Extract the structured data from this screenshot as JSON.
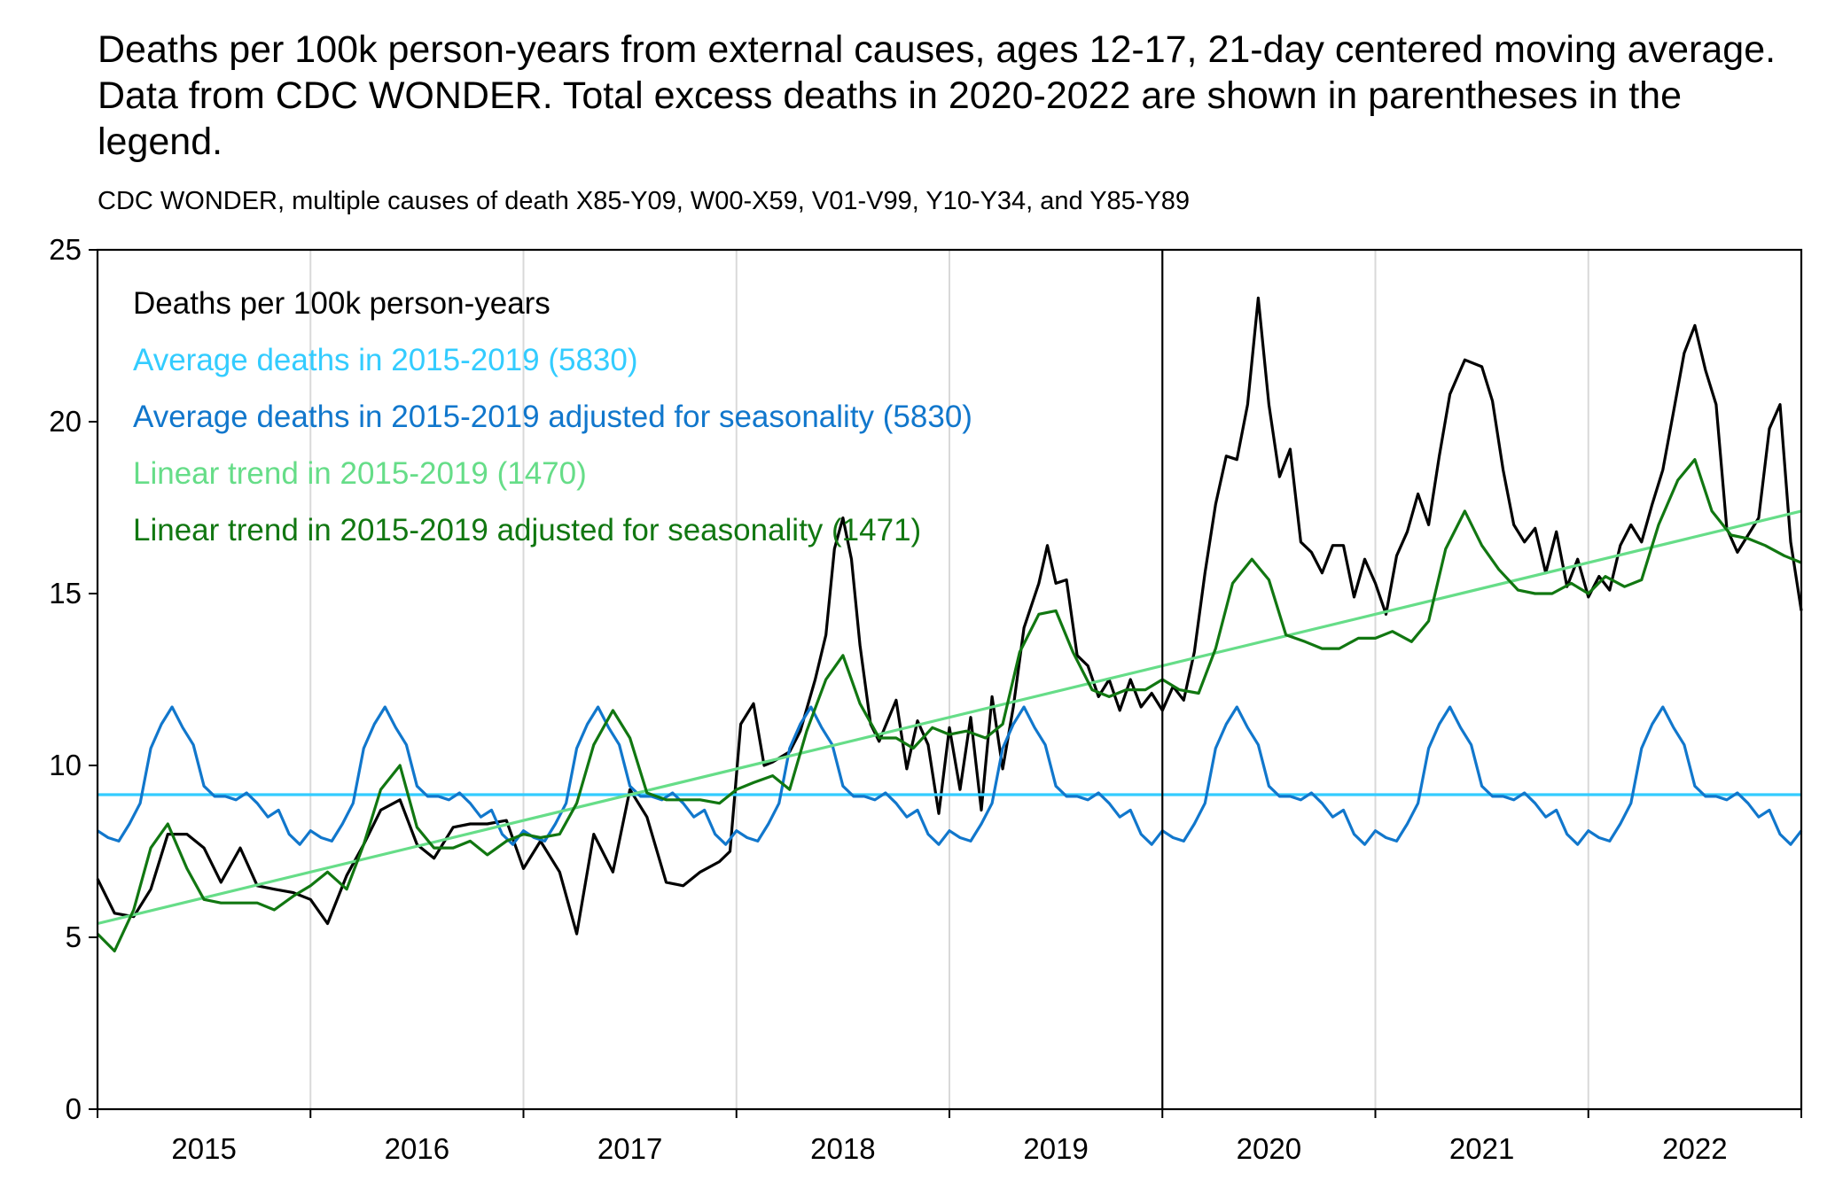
{
  "title": "Deaths per 100k person-years from external causes, ages 12-17, 21-day centered moving average. Data from CDC WONDER. Total excess deaths in 2020-2022 are shown in parentheses in the legend.",
  "subtitle": "CDC WONDER, multiple causes of death X85-Y09, W00-X59, V01-V99, Y10-Y34, and Y85-Y89",
  "chart_data": {
    "type": "line",
    "title": "Deaths per 100k person-years from external causes, ages 12-17, 21-day centered moving average. Data from CDC WONDER. Total excess deaths in 2020-2022 are shown in parentheses in the legend.",
    "subtitle": "CDC WONDER, multiple causes of death X85-Y09, W00-X59, V01-V99, Y10-Y34, and Y85-Y89",
    "xlabel": "",
    "ylabel": "",
    "x_tick_labels": [
      "2015",
      "2016",
      "2017",
      "2018",
      "2019",
      "2020",
      "2021",
      "2022"
    ],
    "xlim": [
      2015.0,
      2023.0
    ],
    "ylim": [
      0,
      25
    ],
    "y_ticks": [
      0,
      5,
      10,
      15,
      20,
      25
    ],
    "grid": "vertical at year boundaries",
    "vertical_marker": 2020.0,
    "legend_position": "top-left",
    "legend_header": "Deaths per 100k person-years",
    "series": [
      {
        "name": "Deaths per 100k person-years",
        "color": "#000000",
        "points": [
          [
            2015.0,
            6.7
          ],
          [
            2015.08,
            5.7
          ],
          [
            2015.17,
            5.6
          ],
          [
            2015.25,
            6.4
          ],
          [
            2015.33,
            8.0
          ],
          [
            2015.42,
            8.0
          ],
          [
            2015.5,
            7.6
          ],
          [
            2015.58,
            6.6
          ],
          [
            2015.67,
            7.6
          ],
          [
            2015.75,
            6.5
          ],
          [
            2015.83,
            6.4
          ],
          [
            2015.92,
            6.3
          ],
          [
            2016.0,
            6.1
          ],
          [
            2016.08,
            5.4
          ],
          [
            2016.17,
            6.8
          ],
          [
            2016.25,
            7.7
          ],
          [
            2016.33,
            8.7
          ],
          [
            2016.42,
            9.0
          ],
          [
            2016.5,
            7.7
          ],
          [
            2016.58,
            7.3
          ],
          [
            2016.67,
            8.2
          ],
          [
            2016.75,
            8.3
          ],
          [
            2016.83,
            8.3
          ],
          [
            2016.92,
            8.4
          ],
          [
            2017.0,
            7.0
          ],
          [
            2017.08,
            7.8
          ],
          [
            2017.17,
            6.9
          ],
          [
            2017.25,
            5.1
          ],
          [
            2017.33,
            8.0
          ],
          [
            2017.42,
            6.9
          ],
          [
            2017.5,
            9.3
          ],
          [
            2017.58,
            8.5
          ],
          [
            2017.67,
            6.6
          ],
          [
            2017.75,
            6.5
          ],
          [
            2017.83,
            6.9
          ],
          [
            2017.92,
            7.2
          ],
          [
            2017.97,
            7.5
          ],
          [
            2018.02,
            11.2
          ],
          [
            2018.08,
            11.8
          ],
          [
            2018.13,
            10.0
          ],
          [
            2018.17,
            10.1
          ],
          [
            2018.25,
            10.4
          ],
          [
            2018.3,
            11.0
          ],
          [
            2018.37,
            12.5
          ],
          [
            2018.42,
            13.8
          ],
          [
            2018.46,
            16.3
          ],
          [
            2018.5,
            17.2
          ],
          [
            2018.54,
            16.0
          ],
          [
            2018.58,
            13.5
          ],
          [
            2018.63,
            11.2
          ],
          [
            2018.67,
            10.7
          ],
          [
            2018.75,
            11.9
          ],
          [
            2018.8,
            9.9
          ],
          [
            2018.85,
            11.3
          ],
          [
            2018.9,
            10.6
          ],
          [
            2018.95,
            8.6
          ],
          [
            2019.0,
            11.1
          ],
          [
            2019.05,
            9.3
          ],
          [
            2019.1,
            11.4
          ],
          [
            2019.15,
            8.7
          ],
          [
            2019.2,
            12.0
          ],
          [
            2019.25,
            9.9
          ],
          [
            2019.3,
            11.7
          ],
          [
            2019.35,
            14.0
          ],
          [
            2019.42,
            15.3
          ],
          [
            2019.46,
            16.4
          ],
          [
            2019.5,
            15.3
          ],
          [
            2019.55,
            15.4
          ],
          [
            2019.6,
            13.2
          ],
          [
            2019.65,
            12.9
          ],
          [
            2019.7,
            12.0
          ],
          [
            2019.75,
            12.5
          ],
          [
            2019.8,
            11.6
          ],
          [
            2019.85,
            12.5
          ],
          [
            2019.9,
            11.7
          ],
          [
            2019.95,
            12.1
          ],
          [
            2020.0,
            11.6
          ],
          [
            2020.05,
            12.3
          ],
          [
            2020.1,
            11.9
          ],
          [
            2020.15,
            13.3
          ],
          [
            2020.2,
            15.6
          ],
          [
            2020.25,
            17.6
          ],
          [
            2020.3,
            19.0
          ],
          [
            2020.35,
            18.9
          ],
          [
            2020.4,
            20.5
          ],
          [
            2020.45,
            23.6
          ],
          [
            2020.5,
            20.5
          ],
          [
            2020.55,
            18.4
          ],
          [
            2020.6,
            19.2
          ],
          [
            2020.65,
            16.5
          ],
          [
            2020.7,
            16.2
          ],
          [
            2020.75,
            15.6
          ],
          [
            2020.8,
            16.4
          ],
          [
            2020.85,
            16.4
          ],
          [
            2020.9,
            14.9
          ],
          [
            2020.95,
            16.0
          ],
          [
            2021.0,
            15.3
          ],
          [
            2021.05,
            14.4
          ],
          [
            2021.1,
            16.1
          ],
          [
            2021.15,
            16.8
          ],
          [
            2021.2,
            17.9
          ],
          [
            2021.25,
            17.0
          ],
          [
            2021.3,
            19.0
          ],
          [
            2021.35,
            20.8
          ],
          [
            2021.42,
            21.8
          ],
          [
            2021.5,
            21.6
          ],
          [
            2021.55,
            20.6
          ],
          [
            2021.6,
            18.6
          ],
          [
            2021.65,
            17.0
          ],
          [
            2021.7,
            16.5
          ],
          [
            2021.75,
            16.9
          ],
          [
            2021.8,
            15.6
          ],
          [
            2021.85,
            16.8
          ],
          [
            2021.9,
            15.2
          ],
          [
            2021.95,
            16.0
          ],
          [
            2022.0,
            14.9
          ],
          [
            2022.05,
            15.5
          ],
          [
            2022.1,
            15.1
          ],
          [
            2022.15,
            16.4
          ],
          [
            2022.2,
            17.0
          ],
          [
            2022.25,
            16.5
          ],
          [
            2022.3,
            17.6
          ],
          [
            2022.35,
            18.6
          ],
          [
            2022.4,
            20.3
          ],
          [
            2022.45,
            22.0
          ],
          [
            2022.5,
            22.8
          ],
          [
            2022.55,
            21.5
          ],
          [
            2022.6,
            20.5
          ],
          [
            2022.65,
            16.9
          ],
          [
            2022.7,
            16.2
          ],
          [
            2022.75,
            16.7
          ],
          [
            2022.8,
            17.2
          ],
          [
            2022.85,
            19.8
          ],
          [
            2022.9,
            20.5
          ],
          [
            2022.95,
            16.5
          ],
          [
            2023.0,
            14.5
          ]
        ]
      },
      {
        "name": "Average deaths in 2015-2019 (5830)",
        "color": "#33ccff",
        "points": [
          [
            2015.0,
            9.15
          ],
          [
            2023.0,
            9.15
          ]
        ]
      },
      {
        "name": "Average deaths in 2015-2019 adjusted for seasonality (5830)",
        "color": "#1177cc",
        "repeat_yearly": true,
        "points": [
          [
            2015.0,
            8.1
          ],
          [
            2015.05,
            7.9
          ],
          [
            2015.1,
            7.8
          ],
          [
            2015.15,
            8.3
          ],
          [
            2015.2,
            8.9
          ],
          [
            2015.25,
            10.5
          ],
          [
            2015.3,
            11.2
          ],
          [
            2015.35,
            11.7
          ],
          [
            2015.4,
            11.1
          ],
          [
            2015.45,
            10.6
          ],
          [
            2015.5,
            9.4
          ],
          [
            2015.55,
            9.1
          ],
          [
            2015.6,
            9.1
          ],
          [
            2015.65,
            9.0
          ],
          [
            2015.7,
            9.2
          ],
          [
            2015.75,
            8.9
          ],
          [
            2015.8,
            8.5
          ],
          [
            2015.85,
            8.7
          ],
          [
            2015.9,
            8.0
          ],
          [
            2015.95,
            7.7
          ],
          [
            2016.0,
            8.1
          ]
        ]
      },
      {
        "name": "Linear trend in 2015-2019 (1470)",
        "color": "#66dd88",
        "points": [
          [
            2015.0,
            5.4
          ],
          [
            2023.0,
            17.4
          ]
        ]
      },
      {
        "name": "Linear trend in 2015-2019 adjusted for seasonality (1471)",
        "color": "#117711",
        "points": [
          [
            2015.0,
            5.1
          ],
          [
            2015.08,
            4.6
          ],
          [
            2015.17,
            5.8
          ],
          [
            2015.25,
            7.6
          ],
          [
            2015.33,
            8.3
          ],
          [
            2015.42,
            7.0
          ],
          [
            2015.5,
            6.1
          ],
          [
            2015.58,
            6.0
          ],
          [
            2015.67,
            6.0
          ],
          [
            2015.75,
            6.0
          ],
          [
            2015.83,
            5.8
          ],
          [
            2015.92,
            6.2
          ],
          [
            2016.0,
            6.5
          ],
          [
            2016.08,
            6.9
          ],
          [
            2016.17,
            6.4
          ],
          [
            2016.25,
            7.7
          ],
          [
            2016.33,
            9.3
          ],
          [
            2016.42,
            10.0
          ],
          [
            2016.5,
            8.2
          ],
          [
            2016.58,
            7.6
          ],
          [
            2016.67,
            7.6
          ],
          [
            2016.75,
            7.8
          ],
          [
            2016.83,
            7.4
          ],
          [
            2016.92,
            7.8
          ],
          [
            2017.0,
            8.0
          ],
          [
            2017.08,
            7.9
          ],
          [
            2017.17,
            8.0
          ],
          [
            2017.25,
            8.9
          ],
          [
            2017.33,
            10.6
          ],
          [
            2017.42,
            11.6
          ],
          [
            2017.5,
            10.8
          ],
          [
            2017.58,
            9.2
          ],
          [
            2017.67,
            9.0
          ],
          [
            2017.75,
            9.0
          ],
          [
            2017.83,
            9.0
          ],
          [
            2017.92,
            8.9
          ],
          [
            2018.0,
            9.3
          ],
          [
            2018.08,
            9.5
          ],
          [
            2018.17,
            9.7
          ],
          [
            2018.25,
            9.3
          ],
          [
            2018.33,
            11.0
          ],
          [
            2018.42,
            12.5
          ],
          [
            2018.5,
            13.2
          ],
          [
            2018.58,
            11.8
          ],
          [
            2018.67,
            10.8
          ],
          [
            2018.75,
            10.8
          ],
          [
            2018.83,
            10.5
          ],
          [
            2018.92,
            11.1
          ],
          [
            2019.0,
            10.9
          ],
          [
            2019.08,
            11.0
          ],
          [
            2019.17,
            10.8
          ],
          [
            2019.25,
            11.2
          ],
          [
            2019.33,
            13.3
          ],
          [
            2019.42,
            14.4
          ],
          [
            2019.5,
            14.5
          ],
          [
            2019.58,
            13.3
          ],
          [
            2019.67,
            12.2
          ],
          [
            2019.75,
            12.0
          ],
          [
            2019.83,
            12.2
          ],
          [
            2019.92,
            12.2
          ],
          [
            2020.0,
            12.5
          ],
          [
            2020.08,
            12.2
          ],
          [
            2020.17,
            12.1
          ],
          [
            2020.25,
            13.4
          ],
          [
            2020.33,
            15.3
          ],
          [
            2020.42,
            16.0
          ],
          [
            2020.5,
            15.4
          ],
          [
            2020.58,
            13.8
          ],
          [
            2020.67,
            13.6
          ],
          [
            2020.75,
            13.4
          ],
          [
            2020.83,
            13.4
          ],
          [
            2020.92,
            13.7
          ],
          [
            2021.0,
            13.7
          ],
          [
            2021.08,
            13.9
          ],
          [
            2021.17,
            13.6
          ],
          [
            2021.25,
            14.2
          ],
          [
            2021.33,
            16.3
          ],
          [
            2021.42,
            17.4
          ],
          [
            2021.5,
            16.4
          ],
          [
            2021.58,
            15.7
          ],
          [
            2021.67,
            15.1
          ],
          [
            2021.75,
            15.0
          ],
          [
            2021.83,
            15.0
          ],
          [
            2021.92,
            15.3
          ],
          [
            2022.0,
            15.0
          ],
          [
            2022.08,
            15.5
          ],
          [
            2022.17,
            15.2
          ],
          [
            2022.25,
            15.4
          ],
          [
            2022.33,
            17.0
          ],
          [
            2022.42,
            18.3
          ],
          [
            2022.5,
            18.9
          ],
          [
            2022.58,
            17.4
          ],
          [
            2022.67,
            16.7
          ],
          [
            2022.75,
            16.6
          ],
          [
            2022.83,
            16.4
          ],
          [
            2022.92,
            16.1
          ],
          [
            2023.0,
            15.9
          ]
        ]
      }
    ]
  }
}
